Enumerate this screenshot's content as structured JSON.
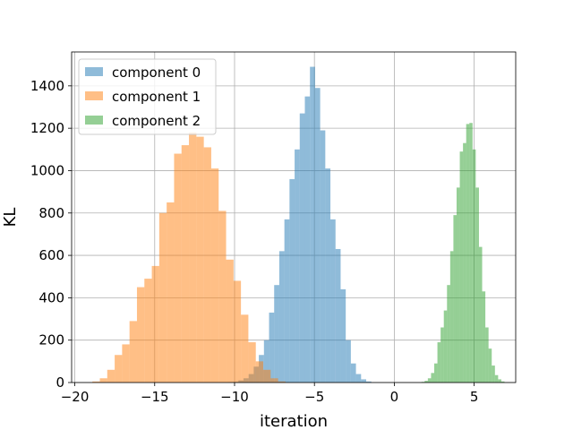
{
  "chart_data": {
    "type": "histogram",
    "title": "",
    "xlabel": "iteration",
    "ylabel": "KL",
    "xlim": [
      -20.2,
      7.6
    ],
    "ylim": [
      0,
      1560
    ],
    "xticks": [
      -20,
      -15,
      -10,
      -5,
      0,
      5
    ],
    "xtick_labels": [
      "−20",
      "−15",
      "−10",
      "−5",
      "0",
      "5"
    ],
    "yticks": [
      0,
      200,
      400,
      600,
      800,
      1000,
      1200,
      1400
    ],
    "ytick_labels": [
      "0",
      "200",
      "400",
      "600",
      "800",
      "1000",
      "1200",
      "1400"
    ],
    "grid": true,
    "legend_position": "top-left",
    "series": [
      {
        "name": "component 0",
        "color": "#1f77b4",
        "bins_from": -10.4,
        "bin_width": 0.32,
        "counts": [
          2,
          3,
          10,
          20,
          40,
          75,
          130,
          200,
          330,
          460,
          620,
          770,
          960,
          1100,
          1270,
          1350,
          1490,
          1390,
          1190,
          1010,
          770,
          630,
          440,
          200,
          90,
          40,
          15,
          5
        ]
      },
      {
        "name": "component 1",
        "color": "#ff7f0e",
        "bins_from": -18.9,
        "bin_width": 0.465,
        "counts": [
          5,
          20,
          60,
          130,
          180,
          290,
          450,
          490,
          550,
          800,
          850,
          1080,
          1120,
          1180,
          1160,
          1110,
          1010,
          810,
          580,
          480,
          320,
          190,
          100,
          60,
          20,
          5
        ]
      },
      {
        "name": "component 2",
        "color": "#2ca02c",
        "bins_from": 1.7,
        "bin_width": 0.2,
        "counts": [
          3,
          8,
          20,
          45,
          90,
          190,
          260,
          340,
          460,
          620,
          790,
          920,
          1090,
          1130,
          1220,
          1225,
          1100,
          920,
          640,
          430,
          260,
          160,
          80,
          35,
          15,
          5
        ]
      }
    ]
  }
}
